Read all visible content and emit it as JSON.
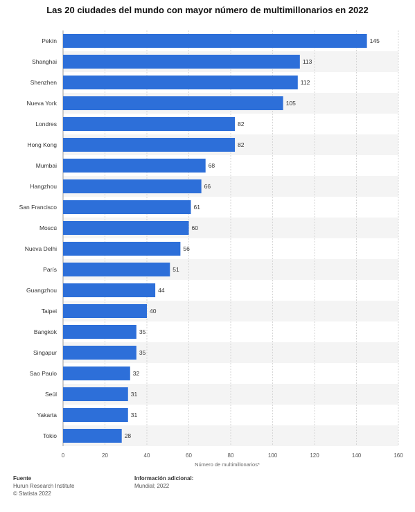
{
  "chart_data": {
    "type": "bar",
    "orientation": "horizontal",
    "title": "Las 20 ciudades del mundo con mayor número de multimillonarios en 2022",
    "xlabel": "Número de multimillonarios*",
    "ylabel": "",
    "xlim": [
      0,
      160
    ],
    "xticks": [
      0,
      20,
      40,
      60,
      80,
      100,
      120,
      140,
      160
    ],
    "grid": true,
    "bar_color": "#2d6fd9",
    "data_labels": true,
    "categories": [
      "Pekín",
      "Shanghai",
      "Shenzhen",
      "Nueva York",
      "Londres",
      "Hong Kong",
      "Mumbai",
      "Hangzhou",
      "San Francisco",
      "Moscú",
      "Nueva Delhi",
      "París",
      "Guangzhou",
      "Taipei",
      "Bangkok",
      "Singapur",
      "Sao Paulo",
      "Seúl",
      "Yakarta",
      "Tokio"
    ],
    "values": [
      145,
      113,
      112,
      105,
      82,
      82,
      68,
      66,
      61,
      60,
      56,
      51,
      44,
      40,
      35,
      35,
      32,
      31,
      31,
      28
    ]
  },
  "footer": {
    "source_heading": "Fuente",
    "source_line1": "Hurun Research Institute",
    "source_line2": "© Statista 2022",
    "info_heading": "Información adicional:",
    "info_line1": "Mundial; 2022"
  }
}
